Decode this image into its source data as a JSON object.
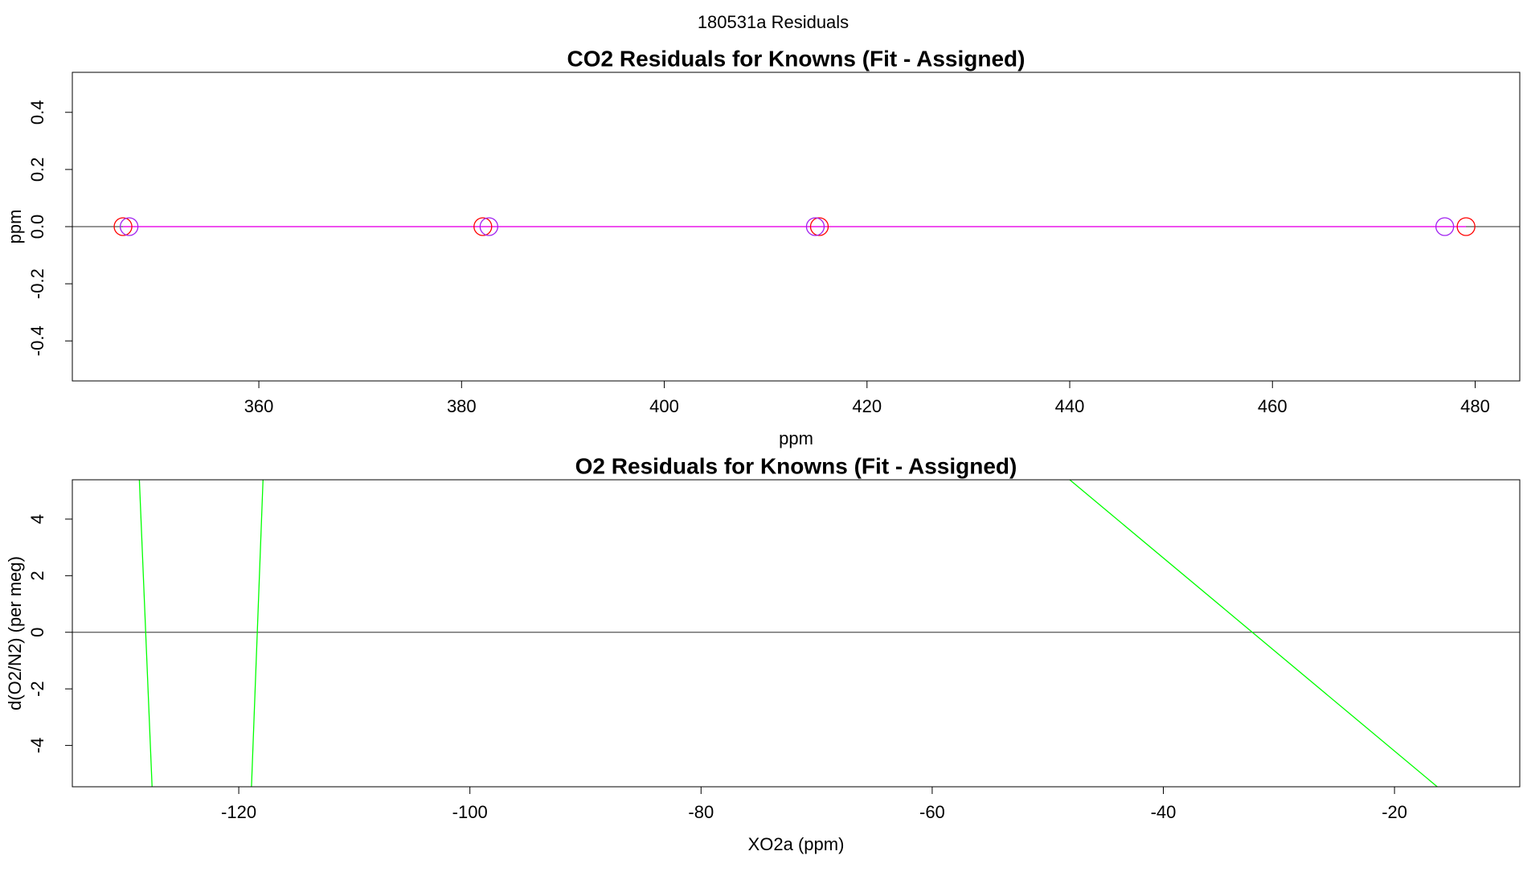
{
  "title": "180531a  Residuals",
  "chart_data": [
    {
      "type": "scatter",
      "title": "CO2 Residuals for Knowns (Fit - Assigned)",
      "x_label": "ppm",
      "y_label": "ppm",
      "xlim": [
        341.6,
        484.4
      ],
      "ylim": [
        -0.54,
        0.54
      ],
      "xticks": [
        360,
        380,
        400,
        420,
        440,
        460,
        480
      ],
      "yticks": [
        -0.4,
        -0.2,
        {
          "value": 0,
          "label": "0.0"
        },
        0.2,
        0.4
      ],
      "hline": 0,
      "hline_color": "#555555",
      "series": [
        {
          "style": "line",
          "color": "#ff00ff",
          "x": [
            346.6,
            479.1
          ],
          "values": [
            0,
            0
          ]
        },
        {
          "style": "points",
          "color": "#ff0000",
          "x": [
            346.6,
            382.1,
            415.3,
            479.1
          ],
          "values": [
            0,
            0,
            0,
            0
          ]
        },
        {
          "style": "points",
          "color": "#a020f0",
          "x": [
            347.2,
            382.7,
            414.9,
            477.0
          ],
          "values": [
            0,
            0,
            0,
            0
          ]
        }
      ]
    },
    {
      "type": "line",
      "title": "O2 Residuals for Knowns (Fit - Assigned)",
      "x_label": "XO2a (ppm)",
      "y_label": "d(O2/N2) (per meg)",
      "xlim": [
        -134.4,
        -9.16
      ],
      "ylim": [
        -5.46,
        5.39
      ],
      "xticks": [
        -120,
        -100,
        -80,
        -60,
        -40,
        -20
      ],
      "yticks": [
        -4,
        -2,
        0,
        2,
        4
      ],
      "hline": 0,
      "hline_color": "#555555",
      "series": [
        {
          "style": "line",
          "color": "#00ff00",
          "x": [
            -128.6,
            -127.5,
            null,
            -118.9,
            -117.9,
            null,
            -48.1,
            -16.3
          ],
          "values": [
            5.39,
            -5.46,
            null,
            -5.46,
            5.39,
            null,
            5.39,
            -5.46
          ]
        }
      ]
    }
  ]
}
